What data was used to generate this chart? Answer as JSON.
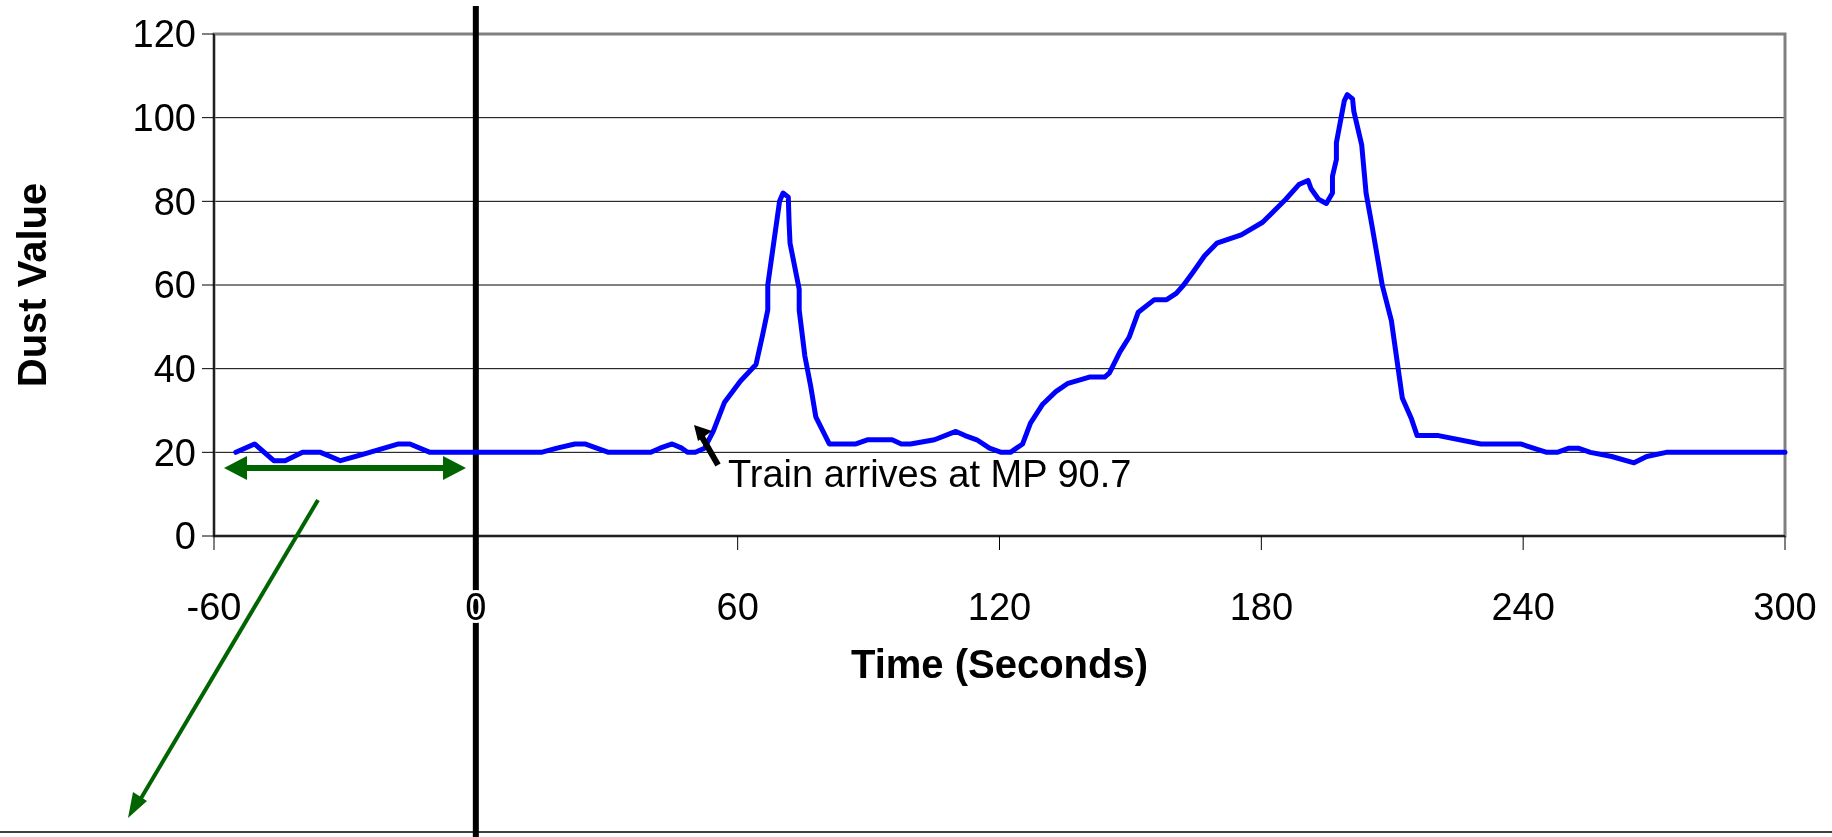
{
  "chart_data": {
    "type": "line",
    "xlabel": "Time (Seconds)",
    "ylabel": "Dust Value",
    "xlim": [
      -60,
      300
    ],
    "xticks": [
      -60,
      0,
      60,
      120,
      180,
      240,
      300
    ],
    "ylim": [
      0,
      120
    ],
    "yticks": [
      0,
      20,
      40,
      60,
      80,
      100,
      120
    ],
    "grid": "y",
    "marker": "none",
    "line_style": "solid",
    "ref_lines": [
      {
        "axis": "x",
        "value": 0,
        "color": "#000000"
      }
    ],
    "annotations": [
      "Train arrives at MP 90.7"
    ],
    "series": [
      {
        "color": "#0000ff",
        "x": [
          -55,
          -50.7,
          -46.3,
          -43.7,
          -39.7,
          -35.6,
          -31,
          -25.9,
          -17.7,
          -15.1,
          -10.5,
          0,
          15,
          18.6,
          22.7,
          25,
          30.4,
          40.1,
          42.2,
          45,
          47.2,
          48.5,
          50.3,
          52.4,
          54.4,
          57,
          60.6,
          64.2,
          65.7,
          66.9,
          66.9,
          69.6,
          70.4,
          71.6,
          71.8,
          72,
          74.1,
          74.1,
          75.4,
          76.7,
          77.9,
          81,
          87.1,
          89.7,
          95.4,
          97.5,
          99.6,
          105.1,
          110,
          112.1,
          114.8,
          117.7,
          120.4,
          122.5,
          125.3,
          127.1,
          129.9,
          132.9,
          135.7,
          140.6,
          144.1,
          145.2,
          147.6,
          149.7,
          151.8,
          155.5,
          158.3,
          160.5,
          162.2,
          164.3,
          167,
          169.8,
          175.4,
          180.3,
          185.6,
          188.6,
          190.7,
          191.4,
          193.1,
          194.9,
          196.3,
          196.3,
          197.2,
          197.2,
          199,
          199.7,
          200.9,
          201.2,
          203,
          204,
          205.3,
          207.7,
          209.8,
          212.3,
          214.4,
          215.7,
          220.6,
          230.3,
          239.4,
          245.4,
          247.8,
          250.5,
          252.6,
          255.4,
          260.3,
          265.4,
          268.3,
          272.8,
          300
        ],
        "values": [
          20,
          22,
          18,
          18,
          20,
          20,
          18,
          19.5,
          22,
          22,
          20,
          20,
          20,
          21,
          22,
          22,
          20,
          20,
          21,
          22,
          21,
          20,
          20,
          21,
          25,
          32,
          37,
          41,
          48,
          54,
          60,
          80,
          82,
          81,
          74.5,
          70,
          59,
          54,
          43,
          36,
          28.5,
          22,
          22,
          23,
          23,
          22,
          22,
          23,
          25,
          24,
          23,
          21,
          20,
          20,
          22,
          27,
          31.5,
          34.5,
          36.5,
          38,
          38,
          39,
          44,
          47.5,
          53.5,
          56.5,
          56.5,
          58,
          60,
          63,
          67,
          70,
          72,
          75,
          80.5,
          84,
          85,
          83,
          80.5,
          79.5,
          82,
          86,
          90,
          94,
          104,
          105.5,
          104.5,
          101.5,
          93.5,
          82,
          74.5,
          60,
          51.5,
          33,
          28,
          24,
          24,
          22,
          22,
          20,
          20,
          21,
          21,
          20,
          19,
          17.5,
          19,
          20,
          20
        ]
      }
    ]
  }
}
